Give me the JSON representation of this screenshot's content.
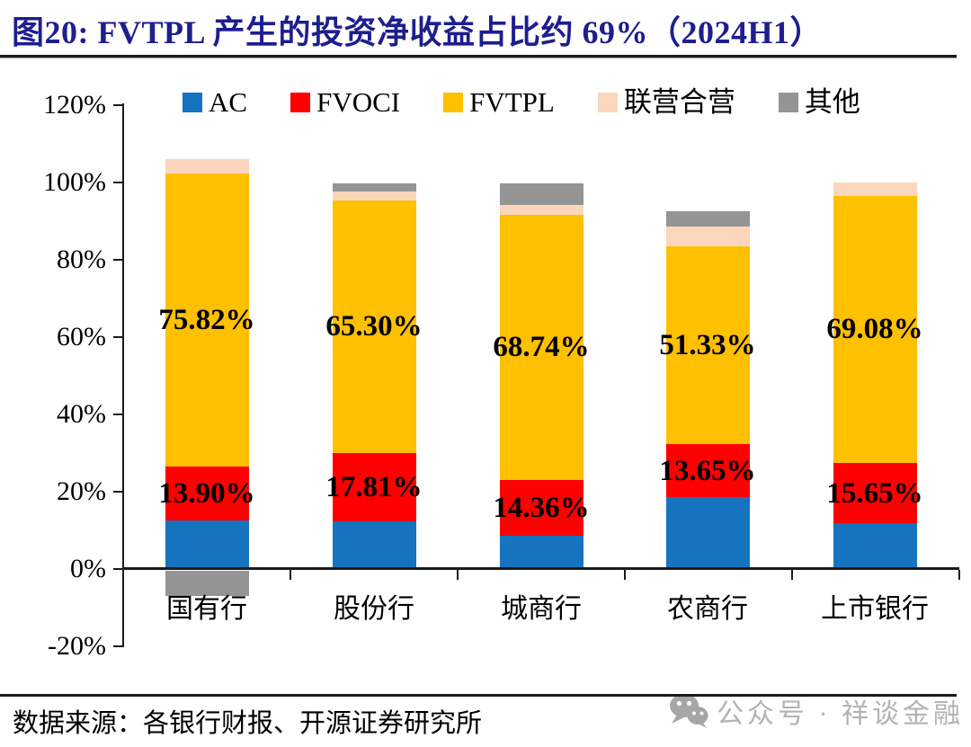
{
  "title": "图20:  FVTPL 产生的投资净收益占比约 69%（2024H1）",
  "colors": {
    "title": "#1E1E8F",
    "axis": "#1B1B1B",
    "ac_blue": "#1573C0",
    "fvoci_red": "#FF0000",
    "fvtpl_yellow": "#FFC000",
    "jv_peach": "#FAD7BC",
    "other_gray": "#949494",
    "watermark_gray": "#B2B2B2"
  },
  "legend": [
    {
      "label": "AC",
      "color": "#1573C0"
    },
    {
      "label": "FVOCI",
      "color": "#FF0000"
    },
    {
      "label": "FVTPL",
      "color": "#FFC000"
    },
    {
      "label": "联营合营",
      "color": "#FAD7BC"
    },
    {
      "label": "其他",
      "color": "#949494"
    }
  ],
  "chart_data": {
    "type": "bar",
    "stacked": true,
    "unit": "%",
    "grid": false,
    "legend_position": "top",
    "categories": [
      "国有行",
      "股份行",
      "城商行",
      "农商行",
      "上市银行"
    ],
    "series": [
      {
        "name": "AC",
        "color": "#1573C0",
        "values": [
          12.6,
          12.3,
          8.6,
          18.6,
          11.8
        ]
      },
      {
        "name": "FVOCI",
        "color": "#FF0000",
        "values": [
          13.9,
          17.81,
          14.36,
          13.65,
          15.65
        ]
      },
      {
        "name": "FVTPL",
        "color": "#FFC000",
        "values": [
          75.82,
          65.3,
          68.74,
          51.33,
          69.08
        ]
      },
      {
        "name": "联营合营",
        "color": "#FAD7BC",
        "values": [
          3.8,
          2.2,
          2.5,
          5.1,
          3.4
        ]
      },
      {
        "name": "其他",
        "color": "#949494",
        "values": [
          -6.5,
          2.2,
          5.6,
          3.9,
          0
        ]
      }
    ],
    "data_labels": {
      "FVOCI": [
        "13.90%",
        "17.81%",
        "14.36%",
        "13.65%",
        "15.65%"
      ],
      "FVTPL": [
        "75.82%",
        "65.30%",
        "68.74%",
        "51.33%",
        "69.08%"
      ]
    },
    "ylim": [
      -20,
      120
    ],
    "yticks": [
      {
        "value": 120,
        "label": "120%"
      },
      {
        "value": 100,
        "label": "100%"
      },
      {
        "value": 80,
        "label": "80%"
      },
      {
        "value": 60,
        "label": "60%"
      },
      {
        "value": 40,
        "label": "40%"
      },
      {
        "value": 20,
        "label": "20%"
      },
      {
        "value": 0,
        "label": "0%"
      },
      {
        "value": -20,
        "label": "-20%"
      }
    ]
  },
  "footer": {
    "source": "数据来源：各银行财报、开源证券研究所",
    "watermark": "公众号 · 祥谈金融"
  }
}
